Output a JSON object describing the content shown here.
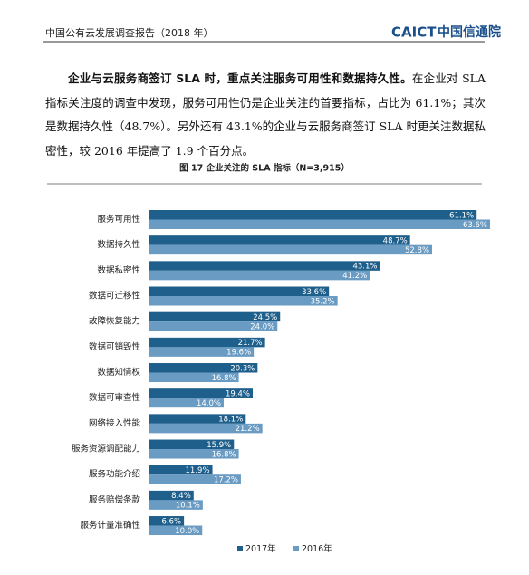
{
  "header": {
    "title": "中国公有云发展调查报告（2018 年）",
    "logo_en": "CAICT",
    "logo_cn": "中国信通院"
  },
  "paragraph": {
    "lead": "企业与云服务商签订 SLA 时，重点关注服务可用性和数据持久性。",
    "text": "在企业对 SLA 指标关注度的调查中发现，服务可用性仍是企业关注的首要指标，占比为 61.1%；其次是数据持久性（48.7%）。另外还有 43.1%的企业与云服务商签订 SLA 时更关注数据私密性，较 2016 年提高了 1.9 个百分点。"
  },
  "chart_data": {
    "type": "bar",
    "orientation": "horizontal",
    "title": "图 17  企业关注的 SLA 指标（N=3,915）",
    "categories": [
      "服务可用性",
      "数据持久性",
      "数据私密性",
      "数据可迁移性",
      "故障恢复能力",
      "数据可销毁性",
      "数据知情权",
      "数据可审查性",
      "网络接入性能",
      "服务资源调配能力",
      "服务功能介绍",
      "服务赔偿条款",
      "服务计量准确性"
    ],
    "series": [
      {
        "name": "2017年",
        "color": "#1f5f8b",
        "values": [
          61.1,
          48.7,
          43.1,
          33.6,
          24.5,
          21.7,
          20.3,
          19.4,
          18.1,
          15.9,
          11.9,
          8.4,
          6.6
        ],
        "value_labels": [
          "61.1%",
          "48.7%",
          "43.1%",
          "33.6%",
          "24.5%",
          "21.7%",
          "20.3%",
          "19.4%",
          "18.1%",
          "15.9%",
          "11.9%",
          "8.4%",
          "6.6%"
        ]
      },
      {
        "name": "2016年",
        "color": "#6a9bc3",
        "values": [
          63.6,
          52.8,
          41.2,
          35.2,
          24.0,
          19.6,
          16.8,
          14.0,
          21.2,
          16.8,
          17.2,
          10.1,
          10.0
        ],
        "value_labels": [
          "63.6%",
          "52.8%",
          "41.2%",
          "35.2%",
          "24.0%",
          "19.6%",
          "16.8%",
          "14.0%",
          "21.2%",
          "16.8%",
          "17.2%",
          "10.1%",
          "10.0%"
        ]
      }
    ],
    "legend": "bottom"
  }
}
